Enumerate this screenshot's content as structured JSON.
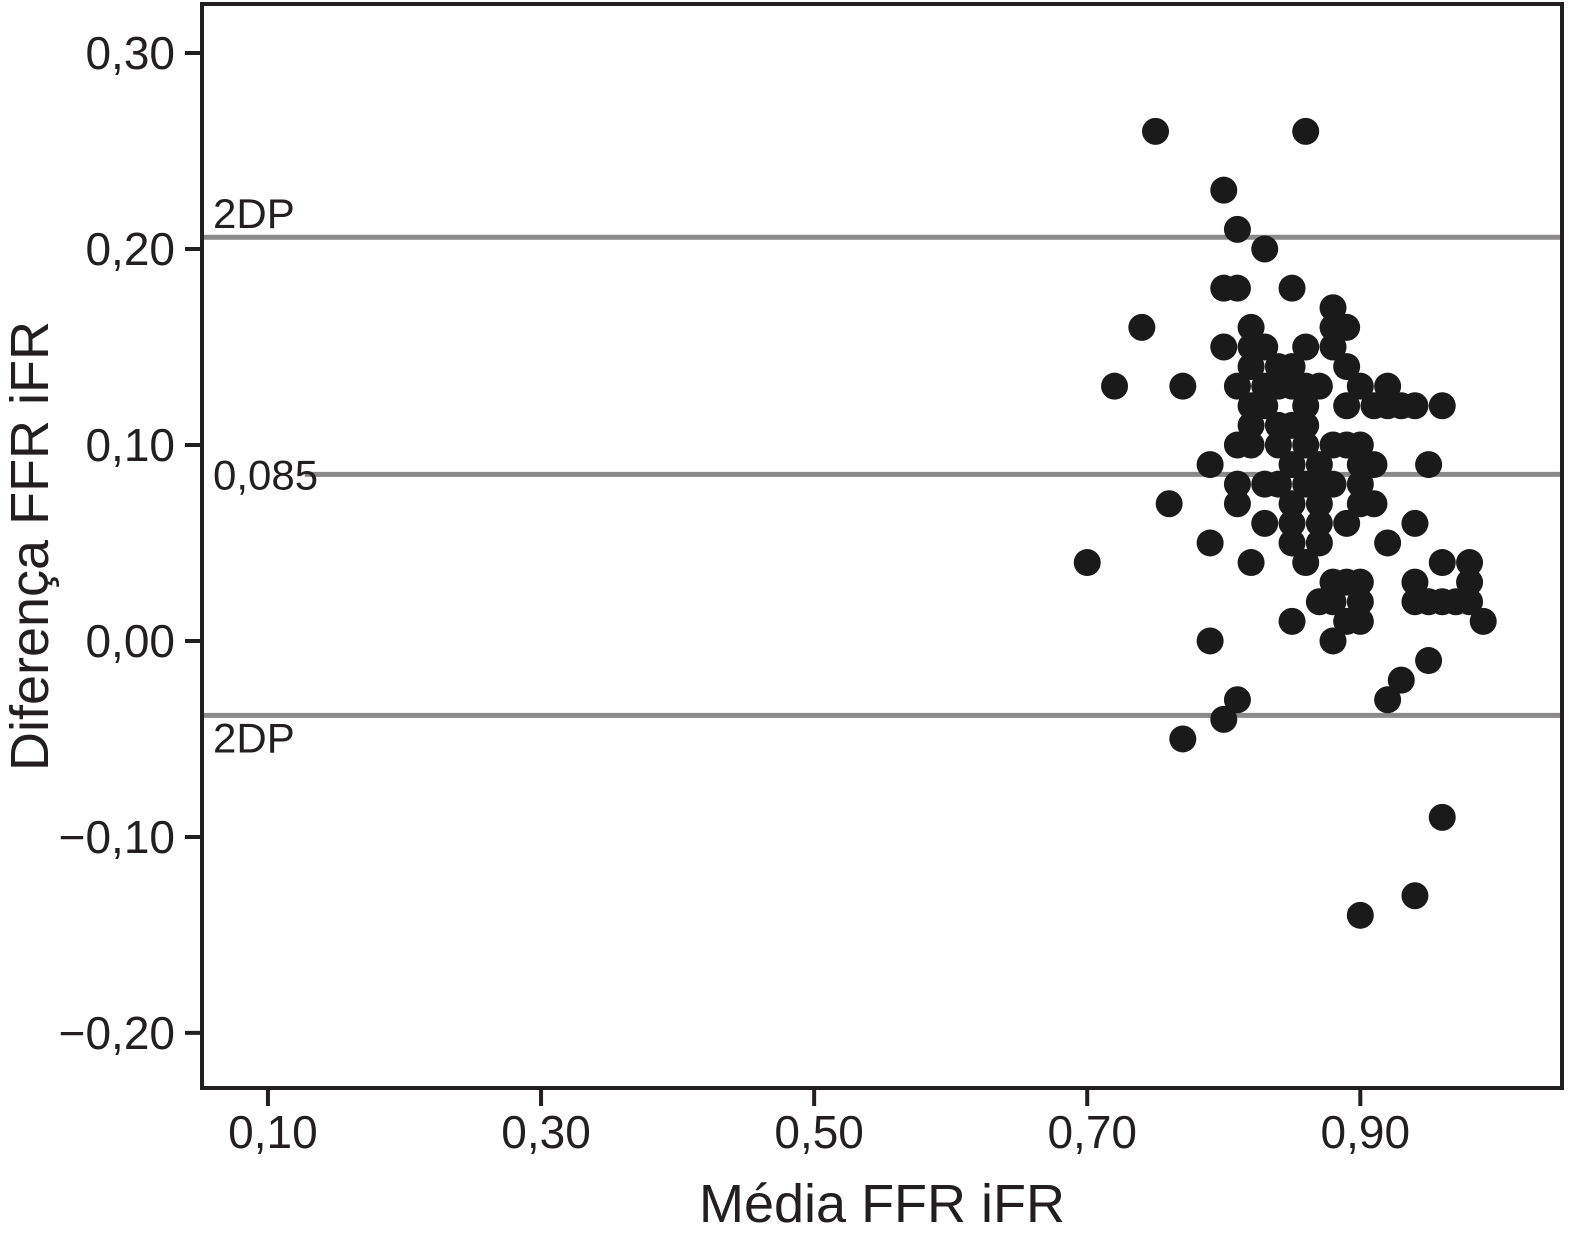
{
  "figure": {
    "background": "#ffffff",
    "frame_color": "#231f20",
    "point_color": "#1a1a1a",
    "ref_line_color": "#8a8a8a"
  },
  "chart_data": {
    "type": "scatter",
    "title": "",
    "xlabel": "Média FFR iFR",
    "ylabel": "Diferença FFR iFR",
    "xlim": [
      0.0517,
      1.0477
    ],
    "ylim": [
      -0.2281,
      0.325
    ],
    "grid": false,
    "x_ticks": [
      {
        "value": 0.1,
        "label": "0,10"
      },
      {
        "value": 0.3,
        "label": "0,30"
      },
      {
        "value": 0.5,
        "label": "0,50"
      },
      {
        "value": 0.7,
        "label": "0,70"
      },
      {
        "value": 0.9,
        "label": "0,90"
      }
    ],
    "y_ticks": [
      {
        "value": 0.3,
        "label": "0,30"
      },
      {
        "value": 0.2,
        "label": "0,20"
      },
      {
        "value": 0.1,
        "label": "0,10"
      },
      {
        "value": 0.0,
        "label": "0,00"
      },
      {
        "value": -0.1,
        "label": "−0,10"
      },
      {
        "value": -0.2,
        "label": "−0,20"
      }
    ],
    "reference_lines": [
      {
        "value": 0.206,
        "label": "2DP",
        "label_position": "above",
        "x_start_value": null
      },
      {
        "value": 0.085,
        "label": "0,085",
        "label_position": "on",
        "x_start_value": 0.127
      },
      {
        "value": -0.038,
        "label": "2DP",
        "label_position": "below",
        "x_start_value": null
      }
    ],
    "points": [
      [
        0.75,
        0.26
      ],
      [
        0.86,
        0.26
      ],
      [
        0.8,
        0.23
      ],
      [
        0.81,
        0.21
      ],
      [
        0.83,
        0.2
      ],
      [
        0.8,
        0.18
      ],
      [
        0.81,
        0.18
      ],
      [
        0.85,
        0.18
      ],
      [
        0.88,
        0.17
      ],
      [
        0.74,
        0.16
      ],
      [
        0.82,
        0.16
      ],
      [
        0.88,
        0.16
      ],
      [
        0.89,
        0.16
      ],
      [
        0.8,
        0.15
      ],
      [
        0.82,
        0.15
      ],
      [
        0.83,
        0.15
      ],
      [
        0.86,
        0.15
      ],
      [
        0.88,
        0.15
      ],
      [
        0.82,
        0.14
      ],
      [
        0.84,
        0.14
      ],
      [
        0.85,
        0.14
      ],
      [
        0.89,
        0.14
      ],
      [
        0.72,
        0.13
      ],
      [
        0.77,
        0.13
      ],
      [
        0.81,
        0.13
      ],
      [
        0.83,
        0.13
      ],
      [
        0.84,
        0.13
      ],
      [
        0.85,
        0.13
      ],
      [
        0.86,
        0.13
      ],
      [
        0.87,
        0.13
      ],
      [
        0.9,
        0.13
      ],
      [
        0.92,
        0.13
      ],
      [
        0.82,
        0.12
      ],
      [
        0.83,
        0.12
      ],
      [
        0.86,
        0.12
      ],
      [
        0.89,
        0.12
      ],
      [
        0.91,
        0.12
      ],
      [
        0.92,
        0.12
      ],
      [
        0.93,
        0.12
      ],
      [
        0.94,
        0.12
      ],
      [
        0.96,
        0.12
      ],
      [
        0.82,
        0.11
      ],
      [
        0.84,
        0.11
      ],
      [
        0.85,
        0.11
      ],
      [
        0.86,
        0.11
      ],
      [
        0.81,
        0.1
      ],
      [
        0.82,
        0.1
      ],
      [
        0.84,
        0.1
      ],
      [
        0.86,
        0.1
      ],
      [
        0.88,
        0.1
      ],
      [
        0.89,
        0.1
      ],
      [
        0.9,
        0.1
      ],
      [
        0.79,
        0.09
      ],
      [
        0.85,
        0.09
      ],
      [
        0.87,
        0.09
      ],
      [
        0.9,
        0.09
      ],
      [
        0.91,
        0.09
      ],
      [
        0.95,
        0.09
      ],
      [
        0.81,
        0.08
      ],
      [
        0.83,
        0.08
      ],
      [
        0.84,
        0.08
      ],
      [
        0.86,
        0.08
      ],
      [
        0.87,
        0.08
      ],
      [
        0.88,
        0.08
      ],
      [
        0.9,
        0.08
      ],
      [
        0.76,
        0.07
      ],
      [
        0.81,
        0.07
      ],
      [
        0.85,
        0.07
      ],
      [
        0.87,
        0.07
      ],
      [
        0.9,
        0.07
      ],
      [
        0.91,
        0.07
      ],
      [
        0.83,
        0.06
      ],
      [
        0.85,
        0.06
      ],
      [
        0.87,
        0.06
      ],
      [
        0.89,
        0.06
      ],
      [
        0.94,
        0.06
      ],
      [
        0.79,
        0.05
      ],
      [
        0.85,
        0.05
      ],
      [
        0.87,
        0.05
      ],
      [
        0.92,
        0.05
      ],
      [
        0.7,
        0.04
      ],
      [
        0.82,
        0.04
      ],
      [
        0.86,
        0.04
      ],
      [
        0.96,
        0.04
      ],
      [
        0.98,
        0.04
      ],
      [
        0.88,
        0.03
      ],
      [
        0.89,
        0.03
      ],
      [
        0.9,
        0.03
      ],
      [
        0.94,
        0.03
      ],
      [
        0.98,
        0.03
      ],
      [
        0.87,
        0.02
      ],
      [
        0.88,
        0.02
      ],
      [
        0.9,
        0.02
      ],
      [
        0.94,
        0.02
      ],
      [
        0.95,
        0.02
      ],
      [
        0.96,
        0.02
      ],
      [
        0.97,
        0.02
      ],
      [
        0.98,
        0.02
      ],
      [
        0.85,
        0.01
      ],
      [
        0.89,
        0.01
      ],
      [
        0.9,
        0.01
      ],
      [
        0.99,
        0.01
      ],
      [
        0.79,
        0.0
      ],
      [
        0.88,
        0.0
      ],
      [
        0.95,
        -0.01
      ],
      [
        0.93,
        -0.02
      ],
      [
        0.81,
        -0.03
      ],
      [
        0.92,
        -0.03
      ],
      [
        0.8,
        -0.04
      ],
      [
        0.77,
        -0.05
      ],
      [
        0.96,
        -0.09
      ],
      [
        0.94,
        -0.13
      ],
      [
        0.9,
        -0.14
      ]
    ]
  }
}
